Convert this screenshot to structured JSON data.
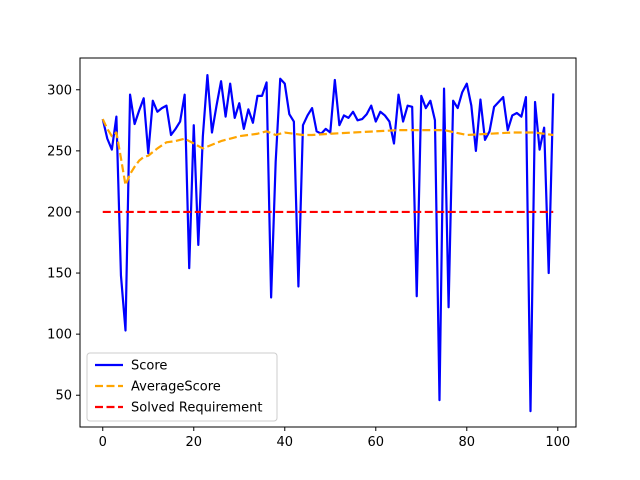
{
  "chart_data": {
    "type": "line",
    "xlim": [
      -5,
      104
    ],
    "ylim": [
      24,
      326
    ],
    "x_ticks": [
      0,
      20,
      40,
      60,
      80,
      100
    ],
    "y_ticks": [
      50,
      100,
      150,
      200,
      250,
      300
    ],
    "grid": false,
    "legend_position": "lower-left",
    "series": [
      {
        "name": "Score",
        "color": "#0000ff",
        "style": "solid",
        "x": [
          0,
          1,
          2,
          3,
          4,
          5,
          6,
          7,
          8,
          9,
          10,
          11,
          12,
          13,
          14,
          15,
          16,
          17,
          18,
          19,
          20,
          21,
          22,
          23,
          24,
          25,
          26,
          27,
          28,
          29,
          30,
          31,
          32,
          33,
          34,
          35,
          36,
          37,
          38,
          39,
          40,
          41,
          42,
          43,
          44,
          45,
          46,
          47,
          48,
          49,
          50,
          51,
          52,
          53,
          54,
          55,
          56,
          57,
          58,
          59,
          60,
          61,
          62,
          63,
          64,
          65,
          66,
          67,
          68,
          69,
          70,
          71,
          72,
          73,
          74,
          75,
          76,
          77,
          78,
          79,
          80,
          81,
          82,
          83,
          84,
          85,
          86,
          87,
          88,
          89,
          90,
          91,
          92,
          93,
          94,
          95,
          96,
          97,
          98,
          99
        ],
        "y": [
          276,
          260,
          251,
          278,
          148,
          103,
          296,
          272,
          283,
          293,
          248,
          291,
          282,
          285,
          287,
          263,
          268,
          274,
          296,
          154,
          271,
          173,
          262,
          312,
          265,
          287,
          307,
          278,
          305,
          277,
          289,
          268,
          284,
          273,
          295,
          295,
          306,
          130,
          241,
          309,
          305,
          280,
          274,
          139,
          271,
          279,
          285,
          266,
          264,
          268,
          265,
          308,
          271,
          279,
          277,
          282,
          275,
          276,
          280,
          287,
          274,
          282,
          279,
          274,
          256,
          296,
          274,
          287,
          286,
          131,
          295,
          285,
          291,
          275,
          46,
          301,
          122,
          291,
          285,
          298,
          305,
          287,
          250,
          292,
          259,
          266,
          286,
          290,
          294,
          267,
          279,
          281,
          278,
          294,
          37,
          290,
          251,
          269,
          150,
          297
        ]
      },
      {
        "name": "AverageScore",
        "color": "#ffa500",
        "style": "dashed",
        "x": [
          0,
          1,
          2,
          3,
          4,
          5,
          6,
          7,
          8,
          9,
          10,
          12,
          14,
          16,
          18,
          20,
          22,
          24,
          26,
          28,
          30,
          34,
          36,
          38,
          40,
          42,
          44,
          46,
          50,
          55,
          60,
          65,
          70,
          75,
          80,
          85,
          90,
          95,
          99
        ],
        "y": [
          276,
          268,
          262,
          265,
          244,
          222,
          231,
          237,
          242,
          245,
          246,
          252,
          257,
          258,
          260,
          256,
          252,
          255,
          258,
          260,
          262,
          264,
          266,
          263,
          265,
          264,
          263,
          263,
          264,
          265,
          266,
          267,
          267,
          267,
          263,
          264,
          265,
          265,
          263
        ]
      },
      {
        "name": "Solved Requirement",
        "color": "#ff0000",
        "style": "dashed",
        "x": [
          0,
          99
        ],
        "y": [
          200,
          200
        ]
      }
    ]
  }
}
